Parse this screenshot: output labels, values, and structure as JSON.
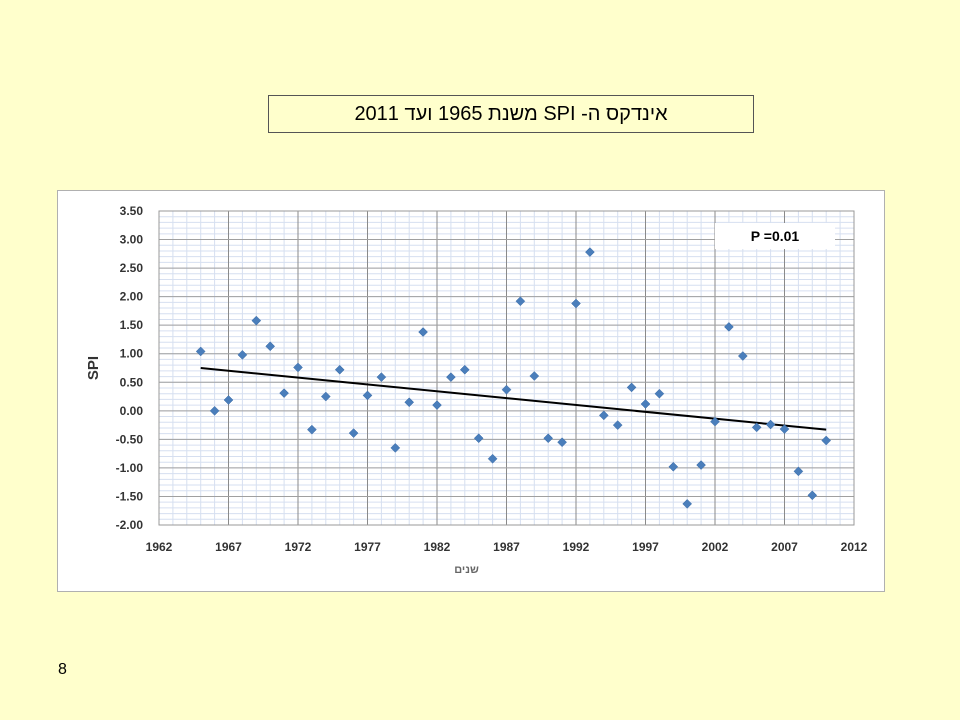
{
  "slide": {
    "title": "אינדקס ה- SPI משנת 1965 ועד 2011",
    "page_number": "8"
  },
  "chart_data": {
    "type": "scatter",
    "title": "",
    "xlabel": "שנים",
    "ylabel": "SPI",
    "xlim": [
      1962,
      2012
    ],
    "ylim": [
      -2.0,
      3.5
    ],
    "xticks": [
      "1962",
      "1967",
      "1972",
      "1977",
      "1982",
      "1987",
      "1992",
      "1997",
      "2002",
      "2007",
      "2012"
    ],
    "yticks": [
      "3.50",
      "3.00",
      "2.50",
      "2.00",
      "1.50",
      "1.00",
      "0.50",
      "0.00",
      "-0.50",
      "-1.00",
      "-1.50",
      "-2.00"
    ],
    "grid": true,
    "annotation": "P =0.01",
    "marker_color": "#4a7ebb",
    "trend_color": "#000000",
    "points": [
      {
        "x": 1965,
        "y": 1.04
      },
      {
        "x": 1966,
        "y": 0.0
      },
      {
        "x": 1967,
        "y": 0.19
      },
      {
        "x": 1968,
        "y": 0.98
      },
      {
        "x": 1969,
        "y": 1.58
      },
      {
        "x": 1970,
        "y": 1.13
      },
      {
        "x": 1971,
        "y": 0.31
      },
      {
        "x": 1972,
        "y": 0.76
      },
      {
        "x": 1973,
        "y": -0.33
      },
      {
        "x": 1974,
        "y": 0.25
      },
      {
        "x": 1975,
        "y": 0.72
      },
      {
        "x": 1976,
        "y": -0.39
      },
      {
        "x": 1977,
        "y": 0.27
      },
      {
        "x": 1978,
        "y": 0.59
      },
      {
        "x": 1979,
        "y": -0.65
      },
      {
        "x": 1980,
        "y": 0.15
      },
      {
        "x": 1981,
        "y": 1.38
      },
      {
        "x": 1982,
        "y": 0.1
      },
      {
        "x": 1983,
        "y": 0.59
      },
      {
        "x": 1984,
        "y": 0.72
      },
      {
        "x": 1985,
        "y": -0.48
      },
      {
        "x": 1986,
        "y": -0.84
      },
      {
        "x": 1987,
        "y": 0.37
      },
      {
        "x": 1988,
        "y": 1.92
      },
      {
        "x": 1989,
        "y": 0.61
      },
      {
        "x": 1990,
        "y": -0.48
      },
      {
        "x": 1991,
        "y": -0.55
      },
      {
        "x": 1992,
        "y": 1.88
      },
      {
        "x": 1993,
        "y": 2.78
      },
      {
        "x": 1994,
        "y": -0.08
      },
      {
        "x": 1995,
        "y": -0.25
      },
      {
        "x": 1996,
        "y": 0.41
      },
      {
        "x": 1997,
        "y": 0.12
      },
      {
        "x": 1998,
        "y": 0.3
      },
      {
        "x": 1999,
        "y": -0.98
      },
      {
        "x": 2000,
        "y": -1.63
      },
      {
        "x": 2001,
        "y": -0.95
      },
      {
        "x": 2002,
        "y": -0.19
      },
      {
        "x": 2003,
        "y": 1.47
      },
      {
        "x": 2004,
        "y": 0.96
      },
      {
        "x": 2005,
        "y": -0.29
      },
      {
        "x": 2006,
        "y": -0.24
      },
      {
        "x": 2007,
        "y": -0.32
      },
      {
        "x": 2008,
        "y": -1.06
      },
      {
        "x": 2009,
        "y": -1.48
      },
      {
        "x": 2010,
        "y": -0.52
      }
    ],
    "trendline": {
      "x": [
        1965,
        2010
      ],
      "y": [
        0.75,
        -0.33
      ]
    }
  }
}
